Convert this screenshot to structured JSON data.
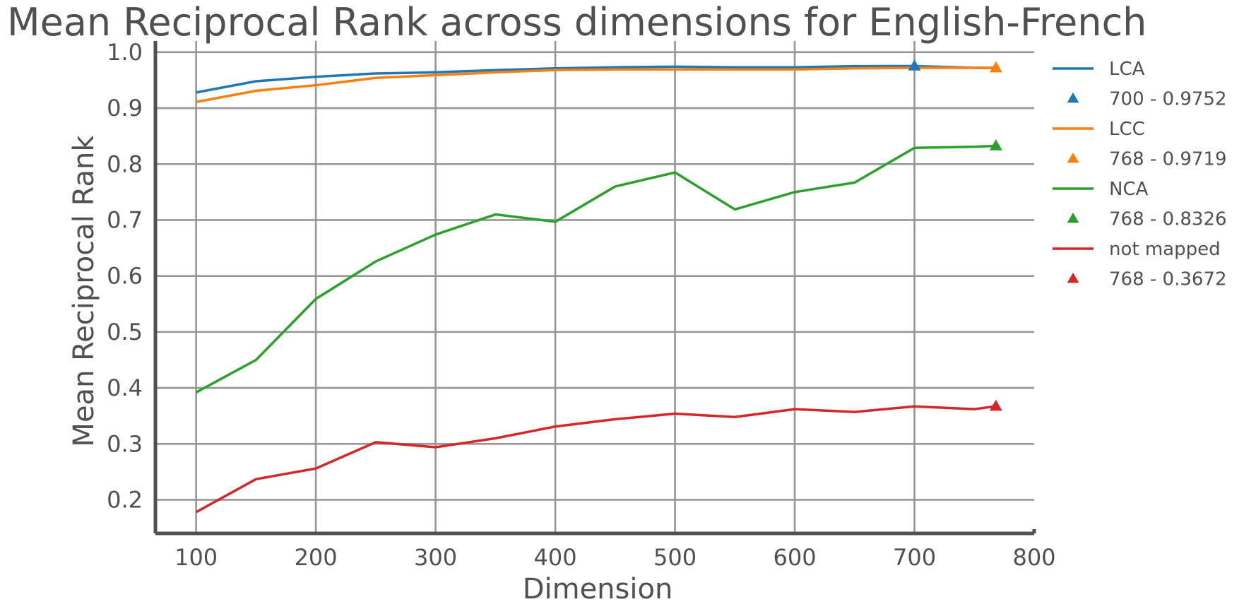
{
  "chart_data": {
    "type": "line",
    "title": "Mean Reciprocal Rank across dimensions for English-French",
    "xlabel": "Dimension",
    "ylabel": "Mean Reciprocal Rank",
    "xlim": [
      66,
      800
    ],
    "ylim": [
      0.14,
      1.02
    ],
    "xticks": [
      100,
      200,
      300,
      400,
      500,
      600,
      700,
      800
    ],
    "yticks": [
      0.2,
      0.3,
      0.4,
      0.5,
      0.6,
      0.7,
      0.8,
      0.9,
      1.0
    ],
    "xtick_labels": [
      "100",
      "200",
      "300",
      "400",
      "500",
      "600",
      "700",
      "800"
    ],
    "ytick_labels": [
      "0.2",
      "0.3",
      "0.4",
      "0.5",
      "0.6",
      "0.7",
      "0.8",
      "0.9",
      "1.0"
    ],
    "grid": true,
    "legend_position": "right",
    "x": [
      100,
      150,
      200,
      250,
      300,
      350,
      400,
      450,
      500,
      550,
      600,
      650,
      700,
      750,
      768
    ],
    "series": [
      {
        "name": "LCA",
        "color": "#1f77b4",
        "values": [
          0.928,
          0.948,
          0.956,
          0.962,
          0.964,
          0.968,
          0.971,
          0.973,
          0.974,
          0.973,
          0.973,
          0.975,
          0.9752,
          0.972,
          0.972
        ],
        "marker": {
          "label": "700 - 0.9752",
          "x": 700,
          "y": 0.9752
        }
      },
      {
        "name": "LCC",
        "color": "#ff7f0e",
        "values": [
          0.911,
          0.931,
          0.941,
          0.954,
          0.959,
          0.964,
          0.968,
          0.969,
          0.969,
          0.969,
          0.969,
          0.971,
          0.972,
          0.972,
          0.9719
        ],
        "marker": {
          "label": "768 - 0.9719",
          "x": 768,
          "y": 0.9719
        }
      },
      {
        "name": "NCA",
        "color": "#2ca02c",
        "values": [
          0.392,
          0.45,
          0.559,
          0.626,
          0.674,
          0.71,
          0.697,
          0.76,
          0.785,
          0.719,
          0.75,
          0.767,
          0.829,
          0.831,
          0.8326
        ],
        "marker": {
          "label": "768 - 0.8326",
          "x": 768,
          "y": 0.8326
        }
      },
      {
        "name": "not mapped",
        "color": "#d62728",
        "values": [
          0.178,
          0.237,
          0.256,
          0.303,
          0.294,
          0.31,
          0.331,
          0.344,
          0.354,
          0.348,
          0.362,
          0.357,
          0.367,
          0.362,
          0.3672
        ],
        "marker": {
          "label": "768 - 0.3672",
          "x": 768,
          "y": 0.3672
        }
      }
    ]
  }
}
